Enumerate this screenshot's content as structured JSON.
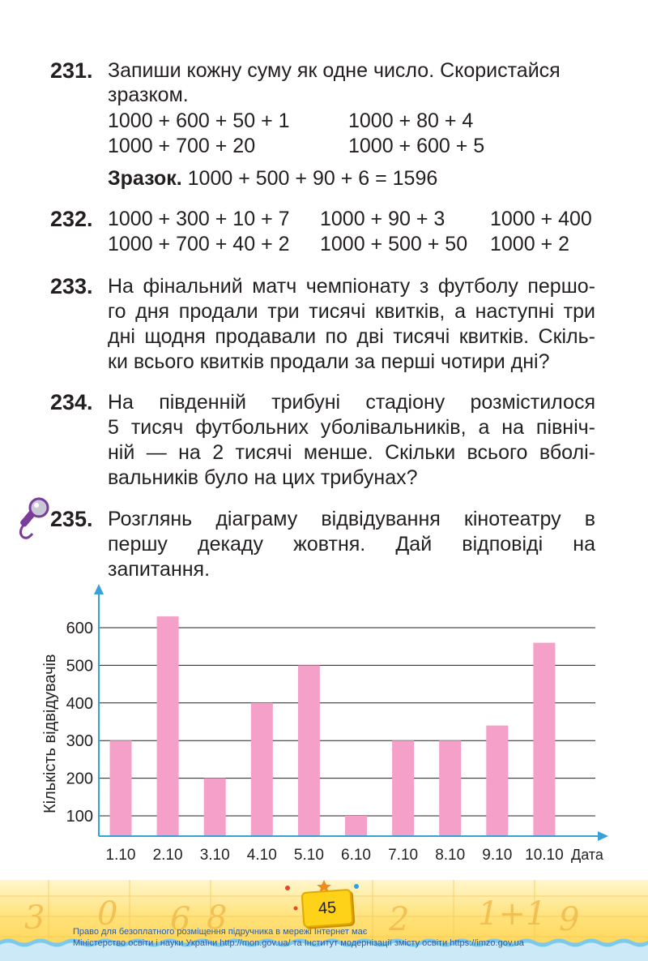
{
  "tasks": {
    "t231": {
      "number": "231.",
      "text_line1": "Запиши кожну суму як одне число. Скористайся",
      "text_line2": "зразком.",
      "sums": [
        "1000 + 600 + 50 + 1",
        "1000 + 80 + 4",
        "1000 + 700 + 20",
        "1000 + 600 + 5"
      ],
      "example_label": "Зразок.",
      "example_text": " 1000 + 500 + 90 + 6 = 1596"
    },
    "t232": {
      "number": "232.",
      "sums": [
        "1000 + 300 + 10 + 7",
        "1000 + 90 + 3",
        "1000 + 400",
        "1000 + 700 + 40 + 2",
        "1000 + 500 + 50",
        "1000 + 2"
      ]
    },
    "t233": {
      "number": "233.",
      "lines": [
        "На фінальний матч чемпіонату з футболу першо-",
        "го дня продали три тисячі квитків, а наступні три",
        "дні щодня продавали по дві тисячі квитків. Скіль-",
        "ки всього квитків продали за перші чотири дні?"
      ]
    },
    "t234": {
      "number": "234.",
      "lines": [
        "На південній трибуні стадіону розмістилося",
        "5 тисяч футбольних уболівальників, а на північ-",
        "ній — на 2 тисячі менше. Скільки всього вболі-",
        "вальників було на цих трибунах?"
      ]
    },
    "t235": {
      "number": "235.",
      "lines": [
        "Розглянь діаграму відвідування кінотеатру в",
        "першу декаду жовтня. Дай відповіді на",
        "запитання."
      ]
    }
  },
  "chart_data": {
    "type": "bar",
    "categories": [
      "1.10",
      "2.10",
      "3.10",
      "4.10",
      "5.10",
      "6.10",
      "7.10",
      "8.10",
      "9.10",
      "10.10"
    ],
    "values": [
      300,
      630,
      200,
      400,
      500,
      100,
      300,
      300,
      340,
      560
    ],
    "y_ticks": [
      "100",
      "200",
      "300",
      "400",
      "500",
      "600"
    ],
    "ylim": [
      0,
      700
    ],
    "ylabel": "Кількість відвідувачів",
    "xlabel": "Дата",
    "grid": true,
    "bar_color": "#f4a0c8",
    "axis_color": "#3aa0d8"
  },
  "page": {
    "number": "45",
    "footer_line1": "Право для безоплатного розміщення підручника в мережі Інтернет має",
    "footer_line2": "Міністерство освіти і науки України http://mon.gov.ua/ та Інститут модернізації змісту освіти https://imzo.gov.ua"
  },
  "icons": {
    "task_235": "microphone-icon"
  }
}
